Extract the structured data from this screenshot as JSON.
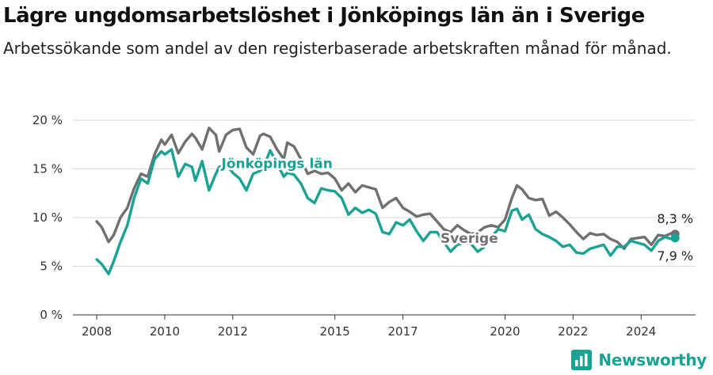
{
  "title": "Lägre ungdomsarbetslöshet i Jönköpings län än i Sverige",
  "subtitle": "Arbetssökande som andel av den registerbaserade arbetskraften månad för månad.",
  "brand": {
    "name": "Newsworthy",
    "icon": "newsworthy-bar-chart-logo-icon"
  },
  "colors": {
    "sverige": "#707070",
    "jonkoping": "#1aa394",
    "grid": "#d9d9d9"
  },
  "chart_data": {
    "type": "line",
    "x_unit": "year",
    "xlim": [
      2007.3,
      2025.6
    ],
    "ylim": [
      0,
      20
    ],
    "y_ticks": [
      0,
      5,
      10,
      15,
      20
    ],
    "y_tick_labels": [
      "0 %",
      "5 %",
      "10 %",
      "15 %",
      "20 %"
    ],
    "x_ticks": [
      2008,
      2010,
      2012,
      2015,
      2017,
      2020,
      2022,
      2024
    ],
    "x_tick_labels": [
      "2008",
      "2010",
      "2012",
      "2015",
      "2017",
      "2020",
      "2022",
      "2024"
    ],
    "grid": "horizontal",
    "series": [
      {
        "name": "Sverige",
        "end_label": "8,3 %",
        "x": [
          2008.0,
          2008.15,
          2008.35,
          2008.5,
          2008.7,
          2008.9,
          2009.1,
          2009.3,
          2009.5,
          2009.7,
          2009.9,
          2010.0,
          2010.2,
          2010.4,
          2010.6,
          2010.8,
          2010.9,
          2011.1,
          2011.3,
          2011.5,
          2011.6,
          2011.8,
          2012.0,
          2012.2,
          2012.4,
          2012.6,
          2012.8,
          2012.9,
          2013.1,
          2013.3,
          2013.5,
          2013.6,
          2013.8,
          2014.0,
          2014.2,
          2014.4,
          2014.6,
          2014.8,
          2015.0,
          2015.2,
          2015.4,
          2015.6,
          2015.8,
          2016.0,
          2016.2,
          2016.4,
          2016.6,
          2016.8,
          2017.0,
          2017.2,
          2017.4,
          2017.6,
          2017.8,
          2018.0,
          2018.2,
          2018.4,
          2018.6,
          2018.8,
          2019.0,
          2019.2,
          2019.4,
          2019.6,
          2019.8,
          2020.0,
          2020.2,
          2020.35,
          2020.5,
          2020.7,
          2020.9,
          2021.1,
          2021.3,
          2021.5,
          2021.7,
          2021.9,
          2022.1,
          2022.3,
          2022.5,
          2022.7,
          2022.9,
          2023.1,
          2023.3,
          2023.5,
          2023.7,
          2023.9,
          2024.1,
          2024.3,
          2024.5,
          2024.7,
          2024.9,
          2025.0
        ],
        "y": [
          9.6,
          9.0,
          7.5,
          8.2,
          10.0,
          11.0,
          13.0,
          14.5,
          14.2,
          16.5,
          18.0,
          17.5,
          18.5,
          16.6,
          17.8,
          18.6,
          18.2,
          17.0,
          19.2,
          18.5,
          16.8,
          18.5,
          19.0,
          19.1,
          17.2,
          16.5,
          18.4,
          18.6,
          18.3,
          17.0,
          16.0,
          17.7,
          17.3,
          16.0,
          14.5,
          14.8,
          14.5,
          14.6,
          14.0,
          12.8,
          13.5,
          12.6,
          13.3,
          13.1,
          12.9,
          11.0,
          11.6,
          12.0,
          11.0,
          10.6,
          10.1,
          10.3,
          10.4,
          9.6,
          8.8,
          8.5,
          9.2,
          8.7,
          8.3,
          8.5,
          9.0,
          9.2,
          9.0,
          9.8,
          12.0,
          13.3,
          12.9,
          12.0,
          11.8,
          11.9,
          10.2,
          10.6,
          10.0,
          9.3,
          8.5,
          7.8,
          8.4,
          8.2,
          8.3,
          7.8,
          7.5,
          6.8,
          7.8,
          7.9,
          8.0,
          7.2,
          8.2,
          8.1,
          8.4,
          8.3
        ]
      },
      {
        "name": "Jönköpings län",
        "end_label": "7,9 %",
        "x": [
          2008.0,
          2008.15,
          2008.35,
          2008.5,
          2008.7,
          2008.9,
          2009.1,
          2009.3,
          2009.5,
          2009.7,
          2009.9,
          2010.0,
          2010.2,
          2010.4,
          2010.6,
          2010.8,
          2010.9,
          2011.1,
          2011.3,
          2011.5,
          2011.6,
          2011.8,
          2012.0,
          2012.2,
          2012.4,
          2012.6,
          2012.8,
          2012.9,
          2013.1,
          2013.3,
          2013.5,
          2013.6,
          2013.8,
          2014.0,
          2014.2,
          2014.4,
          2014.6,
          2014.8,
          2015.0,
          2015.2,
          2015.4,
          2015.6,
          2015.8,
          2016.0,
          2016.2,
          2016.4,
          2016.6,
          2016.8,
          2017.0,
          2017.2,
          2017.4,
          2017.6,
          2017.8,
          2018.0,
          2018.2,
          2018.4,
          2018.6,
          2018.8,
          2019.0,
          2019.2,
          2019.4,
          2019.6,
          2019.8,
          2020.0,
          2020.2,
          2020.35,
          2020.5,
          2020.7,
          2020.9,
          2021.1,
          2021.3,
          2021.5,
          2021.7,
          2021.9,
          2022.1,
          2022.3,
          2022.5,
          2022.7,
          2022.9,
          2023.1,
          2023.3,
          2023.5,
          2023.7,
          2023.9,
          2024.1,
          2024.3,
          2024.5,
          2024.7,
          2024.9,
          2025.0
        ],
        "y": [
          5.7,
          5.2,
          4.2,
          5.5,
          7.5,
          9.2,
          12.0,
          14.0,
          13.5,
          16.0,
          16.8,
          16.5,
          17.0,
          14.2,
          15.5,
          15.2,
          13.8,
          15.8,
          12.8,
          14.5,
          15.2,
          15.5,
          14.6,
          14.0,
          12.8,
          14.5,
          14.8,
          15.2,
          16.9,
          15.5,
          14.2,
          14.6,
          14.4,
          13.5,
          12.0,
          11.5,
          13.0,
          12.8,
          12.7,
          12.0,
          10.3,
          11.0,
          10.5,
          10.8,
          10.4,
          8.5,
          8.3,
          9.5,
          9.2,
          9.8,
          8.6,
          7.6,
          8.5,
          8.5,
          7.5,
          6.5,
          7.2,
          7.4,
          7.3,
          6.5,
          7.0,
          8.0,
          8.8,
          8.6,
          10.7,
          10.9,
          9.8,
          10.3,
          8.8,
          8.3,
          8.0,
          7.6,
          7.0,
          7.2,
          6.4,
          6.3,
          6.8,
          7.0,
          7.2,
          6.1,
          7.0,
          7.0,
          7.6,
          7.4,
          7.2,
          6.6,
          7.6,
          8.0,
          7.8,
          7.9
        ]
      }
    ]
  }
}
